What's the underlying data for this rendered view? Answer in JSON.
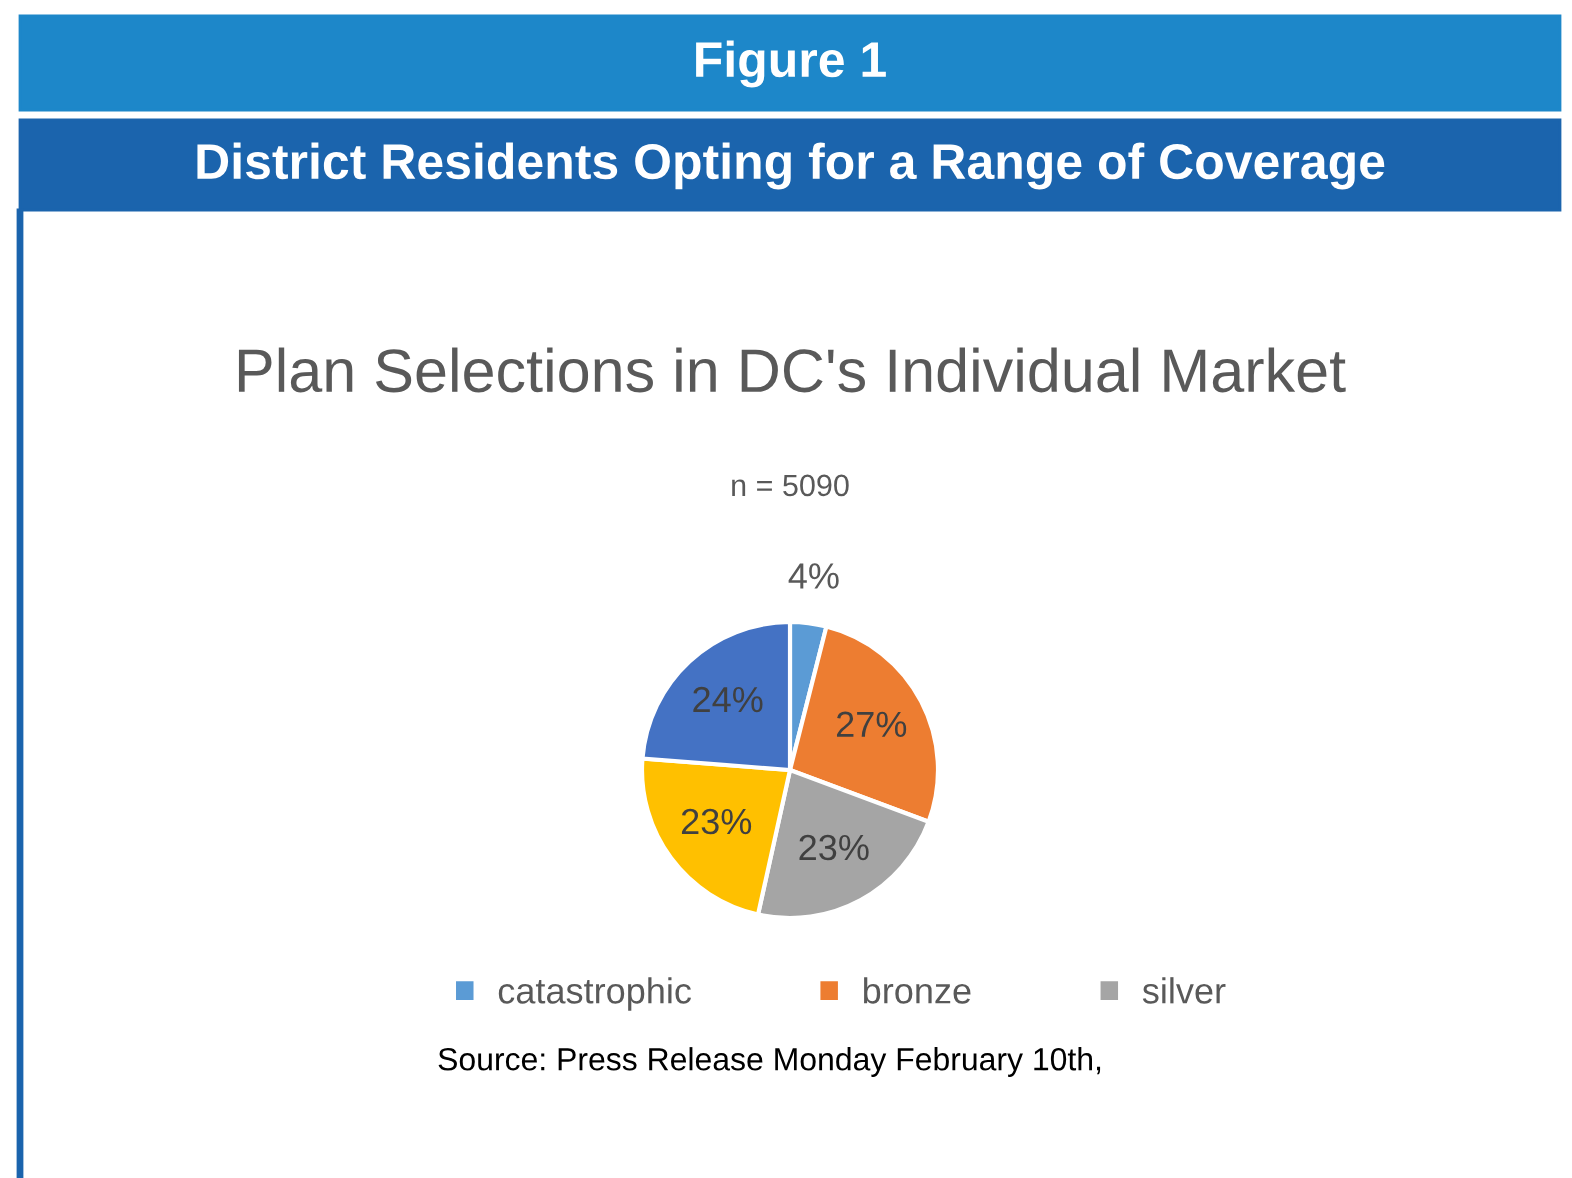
{
  "chart_data": {
    "type": "pie",
    "title": "Plan Selections in DC's Individual Market",
    "subtitle": "n = 5090",
    "categories": [
      "catastrophic",
      "bronze",
      "silver",
      null,
      null
    ],
    "values": [
      4,
      27,
      23,
      23,
      24
    ],
    "colors": [
      "#5b9bd5",
      "#ed7d31",
      "#a5a5a5",
      "#ffc000",
      "#4472c4"
    ],
    "value_labels": [
      "4%",
      "27%",
      "23%",
      "23%",
      "24%"
    ],
    "legend": "bottom",
    "annotations": [
      "Figure 1",
      "District Residents Opting for a Range of Coverage",
      "Source: Press Release Monday February 10th,"
    ]
  }
}
